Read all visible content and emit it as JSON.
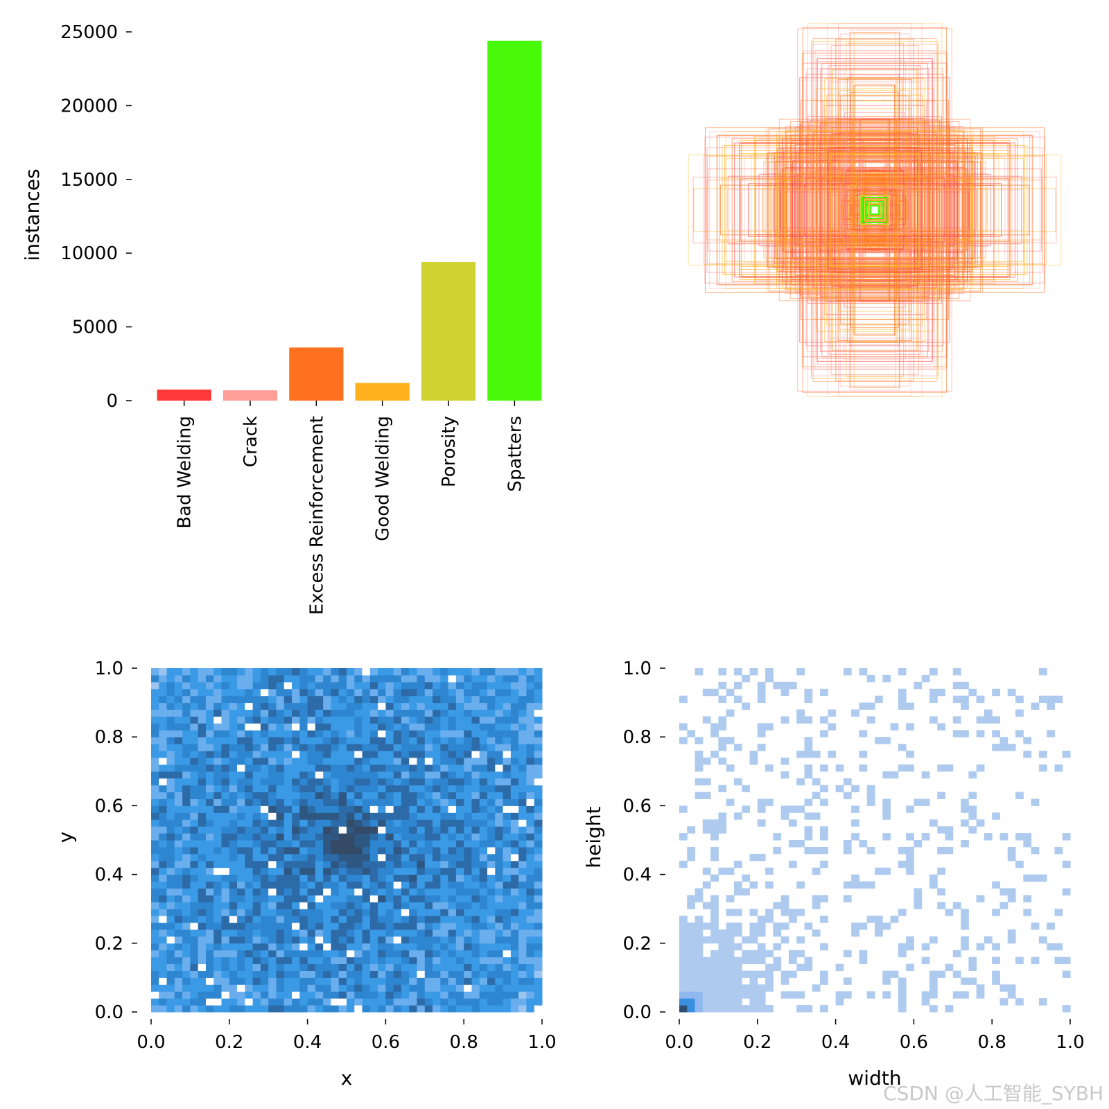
{
  "watermark": "CSDN @人工智能_SYBH",
  "chart_data": [
    {
      "type": "bar",
      "title": "",
      "xlabel": "",
      "ylabel": "instances",
      "ylim": [
        0,
        25000
      ],
      "yticks": [
        "0",
        "5000",
        "10000",
        "15000",
        "20000",
        "25000"
      ],
      "categories": [
        "Bad Welding",
        "Crack",
        "Excess Reinforcement",
        "Good Welding",
        "Porosity",
        "Spatters"
      ],
      "values": [
        750,
        700,
        3600,
        1200,
        9400,
        24400
      ],
      "colors": [
        "#ff3838",
        "#ff9d97",
        "#ff701f",
        "#ffb21d",
        "#cfd231",
        "#48f90a"
      ]
    },
    {
      "type": "box-overlay",
      "title": "",
      "description_colors": [
        "#ff701f",
        "#ffb21d",
        "#ff3838",
        "#ff9d97",
        "#cfd231",
        "#48f90a"
      ]
    },
    {
      "type": "heatmap",
      "title": "",
      "xlabel": "x",
      "ylabel": "y",
      "xlim": [
        0,
        1
      ],
      "ylim": [
        0,
        1
      ],
      "xticks": [
        "0.0",
        "0.2",
        "0.4",
        "0.6",
        "0.8",
        "1.0"
      ],
      "yticks": [
        "0.0",
        "0.2",
        "0.4",
        "0.6",
        "0.8",
        "1.0"
      ],
      "bins": 50,
      "palette": [
        "#ffffff",
        "#9cc4f0",
        "#6aaeee",
        "#3a9ae6",
        "#2f86d0",
        "#2c6aa8",
        "#2e5782",
        "#344a66"
      ]
    },
    {
      "type": "heatmap",
      "title": "",
      "xlabel": "width",
      "ylabel": "height",
      "xlim": [
        0,
        1
      ],
      "ylim": [
        0,
        1
      ],
      "xticks": [
        "0.0",
        "0.2",
        "0.4",
        "0.6",
        "0.8",
        "1.0"
      ],
      "yticks": [
        "0.0",
        "0.2",
        "0.4",
        "0.6",
        "0.8",
        "1.0"
      ],
      "bins": 50,
      "palette": [
        "#ffffff",
        "#aecbef",
        "#8fb8ee",
        "#3a8fe0",
        "#2f4e73"
      ]
    }
  ]
}
